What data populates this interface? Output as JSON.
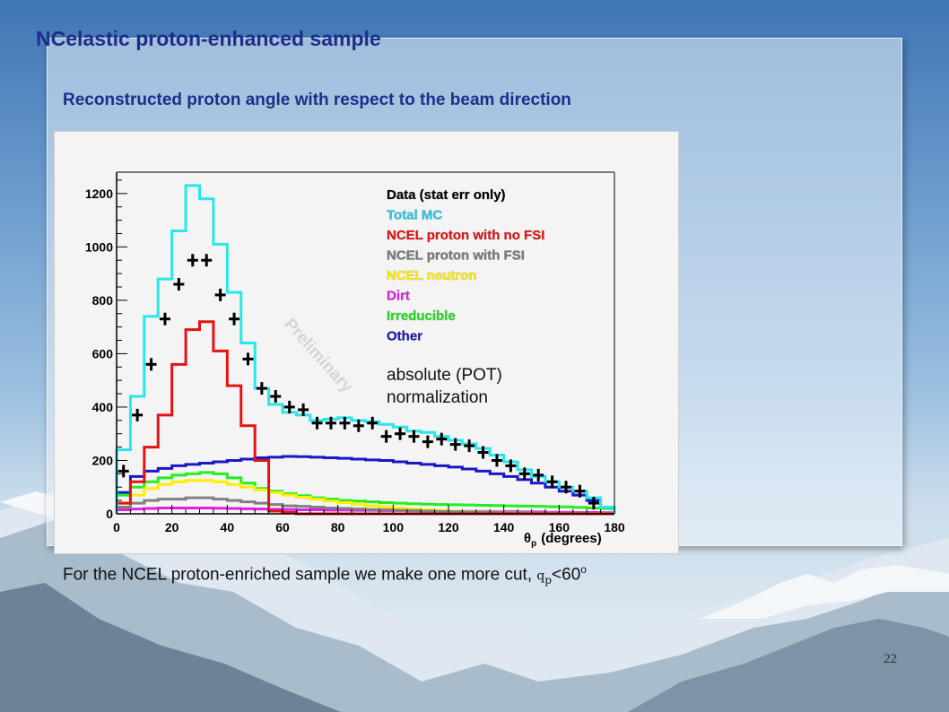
{
  "slide": {
    "title": "NCelastic proton-enhanced sample",
    "subtitle": "Reconstructed proton angle with respect to the beam direction",
    "note_prefix": "For the NCEL proton-enriched sample we make one more cut, ",
    "note_symbol": "q",
    "note_sub": "p",
    "note_cut": "<60",
    "note_sup": "o",
    "page_number": "22"
  },
  "chart_data": {
    "type": "bar",
    "style": "step-histogram",
    "xlabel_symbol": "θ",
    "xlabel_sub": "p",
    "xlabel_text": "(degrees)",
    "xlim": [
      0,
      180
    ],
    "ylim": [
      0,
      1280
    ],
    "xticks": [
      0,
      20,
      40,
      60,
      80,
      100,
      120,
      140,
      160,
      180
    ],
    "yticks": [
      0,
      200,
      400,
      600,
      800,
      1000,
      1200
    ],
    "bin_width": 5,
    "watermark": "Preliminary",
    "normalization_note": [
      "absolute (POT)",
      "normalization"
    ],
    "legend_position": "top-right",
    "series": [
      {
        "name": "Data (stat err only)",
        "color": "#000000",
        "kind": "points",
        "values": [
          160,
          370,
          560,
          730,
          860,
          950,
          950,
          820,
          730,
          580,
          470,
          440,
          400,
          390,
          340,
          340,
          340,
          330,
          340,
          290,
          300,
          290,
          270,
          280,
          260,
          255,
          230,
          200,
          180,
          150,
          145,
          120,
          100,
          85,
          40,
          0
        ]
      },
      {
        "name": "Total MC",
        "color": "#29e6ea",
        "kind": "step",
        "values": [
          240,
          440,
          740,
          880,
          1060,
          1230,
          1180,
          1010,
          830,
          640,
          470,
          410,
          380,
          370,
          350,
          355,
          360,
          350,
          345,
          335,
          325,
          310,
          305,
          290,
          275,
          262,
          245,
          220,
          195,
          165,
          140,
          120,
          100,
          85,
          60,
          25
        ]
      },
      {
        "name": "NCEL proton with no FSI",
        "color": "#e41313",
        "kind": "step",
        "values": [
          40,
          120,
          250,
          370,
          560,
          690,
          720,
          610,
          480,
          330,
          200,
          10,
          5,
          0,
          0,
          0,
          0,
          0,
          0,
          0,
          0,
          0,
          0,
          0,
          0,
          0,
          0,
          0,
          0,
          0,
          0,
          0,
          0,
          0,
          0,
          0
        ]
      },
      {
        "name": "NCEL proton with FSI",
        "color": "#808080",
        "kind": "step",
        "values": [
          25,
          40,
          50,
          55,
          55,
          60,
          60,
          55,
          50,
          45,
          40,
          35,
          30,
          28,
          25,
          22,
          20,
          18,
          16,
          15,
          13,
          12,
          10,
          9,
          8,
          7,
          6,
          5,
          4,
          4,
          3,
          3,
          2,
          2,
          1,
          1
        ]
      },
      {
        "name": "NCEL neutron",
        "color": "#ffee00",
        "kind": "step",
        "values": [
          40,
          70,
          95,
          110,
          120,
          125,
          125,
          120,
          110,
          100,
          90,
          80,
          70,
          62,
          55,
          48,
          42,
          36,
          30,
          26,
          22,
          18,
          15,
          12,
          10,
          8,
          7,
          6,
          5,
          4,
          3,
          3,
          2,
          2,
          1,
          1
        ]
      },
      {
        "name": "Dirt",
        "color": "#e020e0",
        "kind": "step",
        "values": [
          15,
          18,
          20,
          22,
          22,
          22,
          22,
          21,
          20,
          19,
          18,
          17,
          16,
          15,
          15,
          14,
          14,
          13,
          13,
          12,
          12,
          11,
          11,
          10,
          10,
          9,
          9,
          8,
          8,
          7,
          7,
          6,
          6,
          5,
          5,
          4
        ]
      },
      {
        "name": "Irreducible",
        "color": "#22ee22",
        "kind": "step",
        "values": [
          70,
          100,
          120,
          135,
          145,
          150,
          155,
          150,
          135,
          115,
          95,
          85,
          75,
          68,
          60,
          55,
          50,
          48,
          45,
          42,
          40,
          38,
          36,
          35,
          34,
          33,
          32,
          31,
          30,
          29,
          28,
          27,
          26,
          24,
          22,
          20
        ]
      },
      {
        "name": "Other",
        "color": "#1818c8",
        "kind": "step",
        "values": [
          80,
          140,
          160,
          170,
          180,
          185,
          190,
          195,
          200,
          205,
          210,
          212,
          215,
          214,
          212,
          210,
          208,
          205,
          202,
          200,
          195,
          190,
          185,
          180,
          175,
          168,
          160,
          150,
          140,
          128,
          115,
          100,
          85,
          70,
          50,
          25
        ]
      }
    ]
  }
}
